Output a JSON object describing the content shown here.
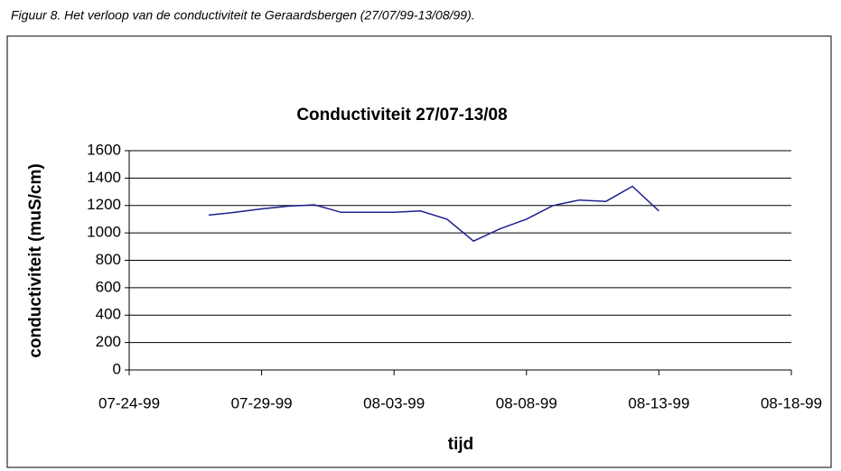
{
  "caption": "Figuur 8.   Het verloop van de conductiviteit te Geraardsbergen (27/07/99-13/08/99).",
  "chart_data": {
    "type": "line",
    "title": "Conductiviteit  27/07-13/08",
    "x_label": "tijd",
    "y_label": "conductiviteit (muS/cm)",
    "x": [
      "1999-07-27",
      "1999-07-28",
      "1999-07-29",
      "1999-07-30",
      "1999-07-31",
      "1999-08-01",
      "1999-08-02",
      "1999-08-03",
      "1999-08-04",
      "1999-08-05",
      "1999-08-06",
      "1999-08-07",
      "1999-08-08",
      "1999-08-09",
      "1999-08-10",
      "1999-08-11",
      "1999-08-12",
      "1999-08-13"
    ],
    "series": [
      {
        "name": "conductiviteit",
        "color": "#1f1f8f",
        "values": [
          1130,
          1150,
          1175,
          1195,
          1205,
          1150,
          1150,
          1150,
          1160,
          1100,
          940,
          1030,
          1100,
          1200,
          1240,
          1230,
          1340,
          1160
        ]
      }
    ],
    "xlim": [
      "1999-07-24",
      "1999-08-18"
    ],
    "xticks": [
      {
        "value": "1999-07-24",
        "label": "07-24-99"
      },
      {
        "value": "1999-07-29",
        "label": "07-29-99"
      },
      {
        "value": "1999-08-03",
        "label": "08-03-99"
      },
      {
        "value": "1999-08-08",
        "label": "08-08-99"
      },
      {
        "value": "1999-08-13",
        "label": "08-13-99"
      },
      {
        "value": "1999-08-18",
        "label": "08-18-99"
      }
    ],
    "ylim": [
      0,
      1600
    ],
    "yticks": [
      0,
      200,
      400,
      600,
      800,
      1000,
      1200,
      1400,
      1600
    ],
    "grid": true
  }
}
